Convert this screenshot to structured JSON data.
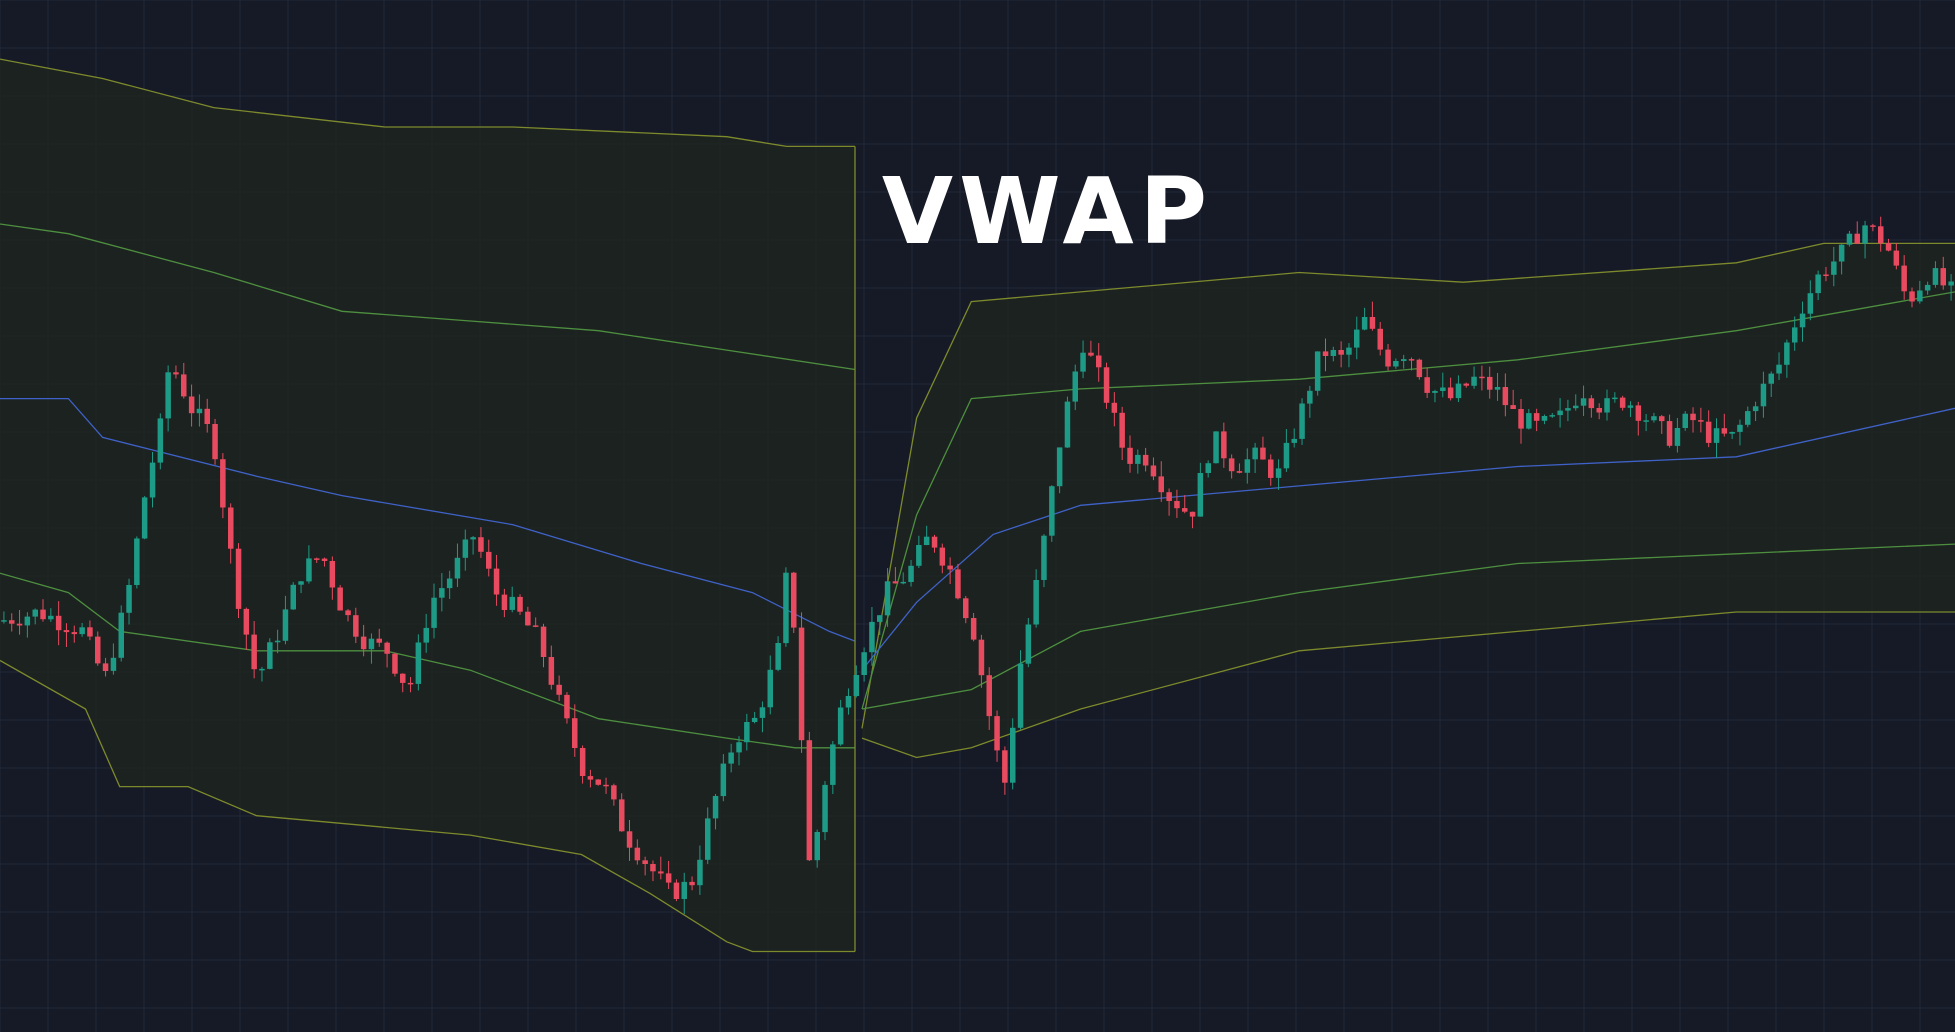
{
  "title": "VWAP",
  "chart_data": {
    "type": "candlestick",
    "title": "VWAP",
    "grid": true,
    "colors": {
      "background": "#161a26",
      "grid": "#222838",
      "up": "#1e9b86",
      "down": "#e84a5f",
      "vwap": "#3f62c8",
      "band1": "#4d8f3f",
      "band2": "#7d8a2c",
      "band_fill": "#1d2420"
    },
    "ylim": [
      0,
      100
    ],
    "sessions": [
      {
        "vwap": [
          [
            0,
            62
          ],
          [
            8,
            62
          ],
          [
            12,
            58
          ],
          [
            30,
            54
          ],
          [
            40,
            52
          ],
          [
            60,
            49
          ],
          [
            75,
            45
          ],
          [
            88,
            42
          ],
          [
            97,
            38
          ],
          [
            100,
            37
          ]
        ],
        "upper1": [
          [
            0,
            80
          ],
          [
            8,
            79
          ],
          [
            25,
            75
          ],
          [
            40,
            71
          ],
          [
            55,
            70
          ],
          [
            70,
            69
          ],
          [
            85,
            67
          ],
          [
            100,
            65
          ]
        ],
        "lower1": [
          [
            0,
            44
          ],
          [
            8,
            42
          ],
          [
            14,
            38
          ],
          [
            30,
            36
          ],
          [
            45,
            36
          ],
          [
            55,
            34
          ],
          [
            70,
            29
          ],
          [
            85,
            27
          ],
          [
            93,
            26
          ],
          [
            100,
            26
          ]
        ],
        "upper2": [
          [
            0,
            97
          ],
          [
            12,
            95
          ],
          [
            25,
            92
          ],
          [
            45,
            90
          ],
          [
            60,
            90
          ],
          [
            85,
            89
          ],
          [
            92,
            88
          ],
          [
            100,
            88
          ]
        ],
        "lower2": [
          [
            0,
            35
          ],
          [
            10,
            30
          ],
          [
            14,
            22
          ],
          [
            22,
            22
          ],
          [
            30,
            19
          ],
          [
            55,
            17
          ],
          [
            68,
            15
          ],
          [
            76,
            11
          ],
          [
            85,
            6
          ],
          [
            88,
            5
          ],
          [
            100,
            5
          ]
        ]
      },
      {
        "vwap": [
          [
            0,
            34
          ],
          [
            5,
            41
          ],
          [
            12,
            48
          ],
          [
            20,
            51
          ],
          [
            40,
            53
          ],
          [
            60,
            55
          ],
          [
            80,
            56
          ],
          [
            100,
            61
          ]
        ],
        "upper1": [
          [
            0,
            30
          ],
          [
            5,
            50
          ],
          [
            10,
            62
          ],
          [
            20,
            63
          ],
          [
            40,
            64
          ],
          [
            60,
            66
          ],
          [
            80,
            69
          ],
          [
            90,
            71
          ],
          [
            100,
            73
          ]
        ],
        "lower1": [
          [
            0,
            30
          ],
          [
            10,
            32
          ],
          [
            20,
            38
          ],
          [
            40,
            42
          ],
          [
            60,
            45
          ],
          [
            80,
            46
          ],
          [
            100,
            47
          ]
        ],
        "upper2": [
          [
            0,
            28
          ],
          [
            5,
            60
          ],
          [
            10,
            72
          ],
          [
            20,
            73
          ],
          [
            40,
            75
          ],
          [
            55,
            74
          ],
          [
            80,
            76
          ],
          [
            88,
            78
          ],
          [
            100,
            78
          ]
        ],
        "lower2": [
          [
            0,
            27
          ],
          [
            5,
            25
          ],
          [
            10,
            26
          ],
          [
            20,
            30
          ],
          [
            40,
            36
          ],
          [
            60,
            38
          ],
          [
            80,
            40
          ],
          [
            100,
            40
          ]
        ]
      }
    ],
    "price_path": [
      [
        0,
        39
      ],
      [
        4,
        40
      ],
      [
        8,
        38
      ],
      [
        10,
        33
      ],
      [
        12,
        41
      ],
      [
        14,
        54
      ],
      [
        15,
        58
      ],
      [
        16,
        66
      ],
      [
        18,
        61
      ],
      [
        20,
        58
      ],
      [
        22,
        43
      ],
      [
        24,
        33
      ],
      [
        26,
        38
      ],
      [
        28,
        44
      ],
      [
        30,
        46
      ],
      [
        32,
        40
      ],
      [
        34,
        37
      ],
      [
        36,
        36
      ],
      [
        38,
        32
      ],
      [
        40,
        41
      ],
      [
        42,
        44
      ],
      [
        44,
        48
      ],
      [
        46,
        42
      ],
      [
        48,
        40
      ],
      [
        50,
        37
      ],
      [
        52,
        30
      ],
      [
        54,
        24
      ],
      [
        56,
        22
      ],
      [
        58,
        17
      ],
      [
        60,
        14
      ],
      [
        62,
        11
      ],
      [
        64,
        12
      ],
      [
        66,
        20
      ],
      [
        68,
        27
      ],
      [
        70,
        29
      ],
      [
        72,
        36
      ],
      [
        73,
        46
      ],
      [
        74,
        30
      ],
      [
        75,
        12
      ],
      [
        76,
        21
      ],
      [
        78,
        31
      ],
      [
        80,
        37
      ],
      [
        82,
        42
      ],
      [
        84,
        44
      ],
      [
        86,
        48
      ],
      [
        88,
        44
      ],
      [
        90,
        38
      ],
      [
        92,
        26
      ],
      [
        93,
        22
      ],
      [
        94,
        33
      ],
      [
        96,
        44
      ],
      [
        98,
        58
      ],
      [
        100,
        68
      ],
      [
        102,
        63
      ],
      [
        104,
        56
      ],
      [
        106,
        56
      ],
      [
        108,
        52
      ],
      [
        110,
        50
      ],
      [
        112,
        58
      ],
      [
        114,
        55
      ],
      [
        116,
        56
      ],
      [
        118,
        54
      ],
      [
        120,
        60
      ],
      [
        122,
        67
      ],
      [
        124,
        66
      ],
      [
        126,
        70
      ],
      [
        128,
        66
      ],
      [
        130,
        67
      ],
      [
        132,
        63
      ],
      [
        134,
        62
      ],
      [
        136,
        64
      ],
      [
        138,
        63
      ],
      [
        140,
        60
      ],
      [
        142,
        59
      ],
      [
        144,
        60
      ],
      [
        146,
        63
      ],
      [
        148,
        61
      ],
      [
        150,
        62
      ],
      [
        152,
        60
      ],
      [
        154,
        58
      ],
      [
        156,
        60
      ],
      [
        158,
        58
      ],
      [
        160,
        58
      ],
      [
        162,
        62
      ],
      [
        164,
        65
      ],
      [
        166,
        71
      ],
      [
        168,
        75
      ],
      [
        170,
        77
      ],
      [
        172,
        80
      ],
      [
        174,
        78
      ],
      [
        176,
        72
      ],
      [
        178,
        75
      ],
      [
        180,
        73
      ]
    ]
  }
}
